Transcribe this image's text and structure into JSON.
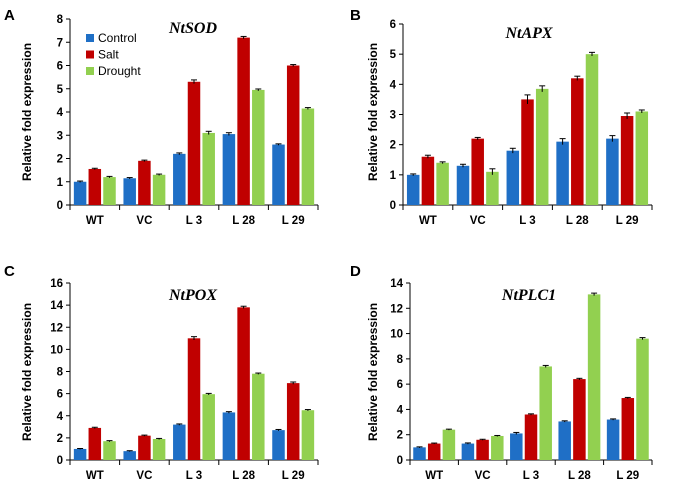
{
  "legend": {
    "colors": [
      "#1f6fc6",
      "#c00000",
      "#92d050"
    ]
  },
  "chart_data": [
    {
      "panel": "A",
      "type": "bar",
      "title": "NtSOD",
      "ylabel": "Relative fold expression",
      "xlabel": "",
      "categories": [
        "WT",
        "VC",
        "L 3",
        "L 28",
        "L 29"
      ],
      "ylim": [
        0,
        8
      ],
      "yticks": [
        0,
        1,
        2,
        3,
        4,
        5,
        6,
        7,
        8
      ],
      "show_legend": true,
      "legend_position": "top-left",
      "series": [
        {
          "name": "Control",
          "values": [
            1.0,
            1.15,
            2.2,
            3.05,
            2.6
          ],
          "errors": [
            0.03,
            0.03,
            0.04,
            0.06,
            0.03
          ]
        },
        {
          "name": "Salt",
          "values": [
            1.55,
            1.9,
            5.3,
            7.2,
            6.0
          ],
          "errors": [
            0.03,
            0.03,
            0.08,
            0.05,
            0.04
          ]
        },
        {
          "name": "Drought",
          "values": [
            1.2,
            1.3,
            3.1,
            4.95,
            4.15
          ],
          "errors": [
            0.03,
            0.03,
            0.07,
            0.04,
            0.04
          ]
        }
      ]
    },
    {
      "panel": "B",
      "type": "bar",
      "title": "NtAPX",
      "ylabel": "Relative fold expression",
      "xlabel": "",
      "categories": [
        "WT",
        "VC",
        "L 3",
        "L 28",
        "L 29"
      ],
      "ylim": [
        0,
        6
      ],
      "yticks": [
        0,
        1,
        2,
        3,
        4,
        5,
        6
      ],
      "show_legend": false,
      "series": [
        {
          "name": "Control",
          "values": [
            1.0,
            1.3,
            1.8,
            2.1,
            2.2
          ],
          "errors": [
            0.03,
            0.05,
            0.08,
            0.1,
            0.1
          ]
        },
        {
          "name": "Salt",
          "values": [
            1.6,
            2.2,
            3.5,
            4.2,
            2.95
          ],
          "errors": [
            0.05,
            0.04,
            0.15,
            0.07,
            0.1
          ]
        },
        {
          "name": "Drought",
          "values": [
            1.4,
            1.1,
            3.85,
            5.0,
            3.1
          ],
          "errors": [
            0.03,
            0.1,
            0.1,
            0.06,
            0.05
          ]
        }
      ]
    },
    {
      "panel": "C",
      "type": "bar",
      "title": "NtPOX",
      "ylabel": "Relative fold expression",
      "xlabel": "",
      "categories": [
        "WT",
        "VC",
        "L 3",
        "L 28",
        "L 29"
      ],
      "ylim": [
        0,
        16
      ],
      "yticks": [
        0,
        2,
        4,
        6,
        8,
        10,
        12,
        14,
        16
      ],
      "show_legend": false,
      "series": [
        {
          "name": "Control",
          "values": [
            1.0,
            0.8,
            3.2,
            4.3,
            2.7
          ],
          "errors": [
            0.04,
            0.04,
            0.06,
            0.07,
            0.06
          ]
        },
        {
          "name": "Salt",
          "values": [
            2.9,
            2.2,
            11.0,
            13.8,
            6.95
          ],
          "errors": [
            0.06,
            0.05,
            0.15,
            0.1,
            0.1
          ]
        },
        {
          "name": "Drought",
          "values": [
            1.7,
            1.9,
            5.95,
            7.8,
            4.5
          ],
          "errors": [
            0.05,
            0.05,
            0.07,
            0.06,
            0.06
          ]
        }
      ]
    },
    {
      "panel": "D",
      "type": "bar",
      "title": "NtPLC1",
      "ylabel": "Relative fold expression",
      "xlabel": "",
      "categories": [
        "WT",
        "VC",
        "L 3",
        "L 28",
        "L 29"
      ],
      "ylim": [
        0,
        14
      ],
      "yticks": [
        0,
        2,
        4,
        6,
        8,
        10,
        12,
        14
      ],
      "show_legend": false,
      "series": [
        {
          "name": "Control",
          "values": [
            1.0,
            1.3,
            2.1,
            3.05,
            3.2
          ],
          "errors": [
            0.04,
            0.05,
            0.08,
            0.05,
            0.05
          ]
        },
        {
          "name": "Salt",
          "values": [
            1.3,
            1.6,
            3.6,
            6.4,
            4.9
          ],
          "errors": [
            0.04,
            0.04,
            0.05,
            0.06,
            0.05
          ]
        },
        {
          "name": "Drought",
          "values": [
            2.4,
            1.9,
            7.4,
            13.1,
            9.6
          ],
          "errors": [
            0.04,
            0.04,
            0.08,
            0.1,
            0.08
          ]
        }
      ]
    }
  ]
}
